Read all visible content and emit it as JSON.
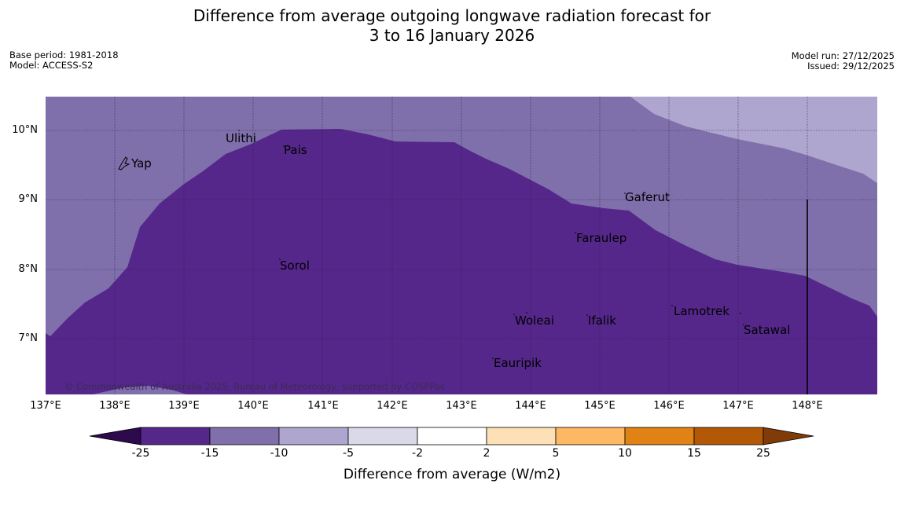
{
  "title": {
    "line1": "Difference from average outgoing longwave radiation forecast for",
    "line2": "3 to 16 January 2026"
  },
  "meta": {
    "base_period": "Base period: 1981-2018",
    "model": "Model: ACCESS-S2",
    "model_run": "Model run: 27/12/2025",
    "issued": "Issued: 29/12/2025"
  },
  "map": {
    "lat_labels": [
      "10°N",
      "9°N",
      "8°N",
      "7°N"
    ],
    "lon_labels": [
      "137°E",
      "138°E",
      "139°E",
      "140°E",
      "141°E",
      "142°E",
      "143°E",
      "144°E",
      "145°E",
      "146°E",
      "147°E",
      "148°E"
    ],
    "places": [
      "Yap",
      "Ulithi",
      "Pais",
      "Gaferut",
      "Faraulep",
      "Sorol",
      "Lamotrek",
      "Woleai",
      "Ifalik",
      "Satawal",
      "Eauripik"
    ],
    "copyright": "© Commonwealth of Australia 2025, Bureau of Meteorology, supported by COSPPac"
  },
  "colorbar": {
    "ticks": [
      "-25",
      "-15",
      "-10",
      "-5",
      "-2",
      "2",
      "5",
      "10",
      "15",
      "25"
    ],
    "colors": [
      "#2d0a4b",
      "#55278a",
      "#7f70ab",
      "#afa6d0",
      "#d9d9ea",
      "#ffffff",
      "#fee0b6",
      "#fdb863",
      "#e08214",
      "#b35806",
      "#7f3b08"
    ],
    "title": "Difference from average (W/m2)"
  }
}
